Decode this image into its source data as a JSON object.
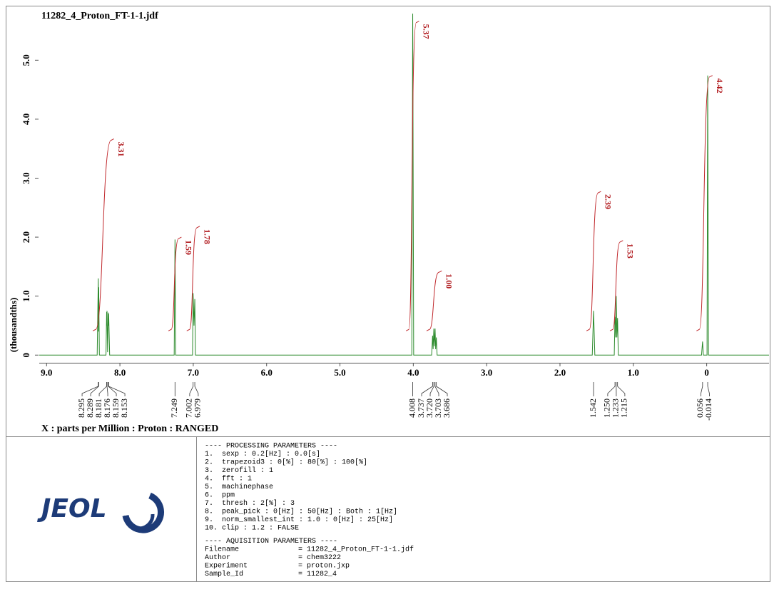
{
  "header": {
    "title": "11282_4_Proton_FT-1-1.jdf"
  },
  "chart_data": {
    "type": "line",
    "xlabel": "X : parts per Million : Proton : RANGED",
    "ylabel": "(thousandths)",
    "color": "#2b8a2b",
    "x": [
      9.1,
      8.31,
      8.295,
      8.292,
      8.289,
      8.28,
      8.19,
      8.181,
      8.178,
      8.176,
      8.168,
      8.159,
      8.156,
      8.153,
      8.14,
      7.26,
      7.249,
      7.24,
      7.01,
      7.002,
      6.99,
      6.979,
      6.97,
      4.02,
      4.008,
      3.995,
      3.75,
      3.737,
      3.73,
      3.72,
      3.712,
      3.703,
      3.695,
      3.686,
      3.675,
      1.56,
      1.542,
      1.525,
      1.26,
      1.25,
      1.242,
      1.233,
      1.225,
      1.215,
      1.205,
      0.07,
      0.056,
      0.045,
      -0.005,
      -0.014,
      -0.025,
      -0.85
    ],
    "values": [
      0,
      0,
      1.3,
      0.4,
      1.15,
      0,
      0,
      0.73,
      0.5,
      0.75,
      0.05,
      0.72,
      0.5,
      0.7,
      0,
      0,
      1.96,
      0,
      0,
      1.05,
      0.5,
      0.95,
      0,
      0,
      5.79,
      0,
      0,
      0.33,
      0.1,
      0.45,
      0.15,
      0.45,
      0.1,
      0.3,
      0,
      0,
      0.75,
      0,
      0,
      0.65,
      0.3,
      1.0,
      0.3,
      0.63,
      0,
      0,
      0.23,
      0,
      0,
      4.74,
      0,
      0
    ],
    "xlim": [
      9.1,
      -0.85
    ],
    "ylim": [
      -0.13,
      5.9
    ],
    "xticks": [
      {
        "value": 9,
        "label": "9.0"
      },
      {
        "value": 8,
        "label": "8.0"
      },
      {
        "value": 7,
        "label": "7.0"
      },
      {
        "value": 6,
        "label": "6.0"
      },
      {
        "value": 5,
        "label": "5.0"
      },
      {
        "value": 4,
        "label": "4.0"
      },
      {
        "value": 3,
        "label": "3.0"
      },
      {
        "value": 2,
        "label": "2.0"
      },
      {
        "value": 1,
        "label": "1.0"
      },
      0
    ],
    "yticks": [
      0,
      {
        "value": 1,
        "label": "1.0"
      },
      {
        "value": 2,
        "label": "2.0"
      },
      {
        "value": 3,
        "label": "3.0"
      },
      {
        "value": 4,
        "label": "4.0"
      },
      {
        "value": 5,
        "label": "5.0"
      }
    ],
    "peaks": [
      8.295,
      8.289,
      8.181,
      8.176,
      8.159,
      8.153,
      7.249,
      7.002,
      6.979,
      4.008,
      3.737,
      {
        "value": 3.72,
        "label": "3.720"
      },
      3.703,
      3.686,
      1.542,
      {
        "value": 1.25,
        "label": "1.250"
      },
      1.233,
      1.215,
      0.056,
      -0.014
    ],
    "integrals": {
      "color": "#c0282c",
      "from": [
        8.33,
        7.3,
        7.05,
        4.06,
        3.78,
        1.6,
        1.28,
        0.1
      ],
      "to": [
        8.12,
        7.2,
        6.95,
        3.96,
        3.65,
        1.48,
        1.18,
        -0.04
      ],
      "values": [
        3.31,
        1.59,
        1.78,
        5.37,
        1.0,
        2.39,
        1.53,
        4.42
      ],
      "value_labels": [
        "3.31",
        "1.59",
        "1.78",
        "5.37",
        "1.00",
        "2.39",
        "1.53",
        "4.42"
      ]
    }
  },
  "logo": "JEOL",
  "parameters": {
    "processing_title": "---- PROCESSING PARAMETERS ----",
    "processing": [
      "1.  sexp : 0.2[Hz] : 0.0[s]",
      "2.  trapezoid3 : 0[%] : 80[%] : 100[%]",
      "3.  zerofill : 1",
      "4.  fft : 1",
      "5.  machinephase",
      "6.  ppm",
      "7.  thresh : 2[%] : 3",
      "8.  peak_pick : 0[Hz] : 50[Hz] : Both : 1[Hz]",
      "9.  norm_smallest_int : 1.0 : 0[Hz] : 25[Hz]",
      "10. clip : 1.2 : FALSE"
    ],
    "acquisition_title": "---- AQUISITION PARAMETERS ----",
    "acquisition": [
      [
        "Filename",
        "= 11282_4_Proton_FT-1-1.jdf"
      ],
      [
        "Author",
        "= chem3222"
      ],
      [
        "Experiment",
        "= proton.jxp"
      ],
      [
        "Sample_Id",
        "= 11282_4"
      ]
    ]
  }
}
